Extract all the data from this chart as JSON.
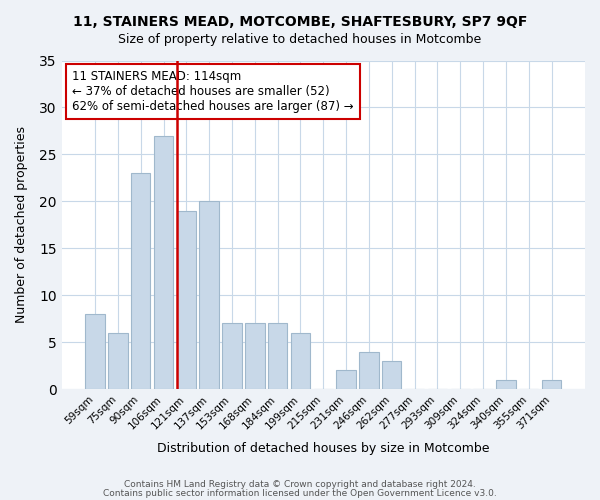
{
  "title": "11, STAINERS MEAD, MOTCOMBE, SHAFTESBURY, SP7 9QF",
  "subtitle": "Size of property relative to detached houses in Motcombe",
  "xlabel": "Distribution of detached houses by size in Motcombe",
  "ylabel": "Number of detached properties",
  "categories": [
    "59sqm",
    "75sqm",
    "90sqm",
    "106sqm",
    "121sqm",
    "137sqm",
    "153sqm",
    "168sqm",
    "184sqm",
    "199sqm",
    "215sqm",
    "231sqm",
    "246sqm",
    "262sqm",
    "277sqm",
    "293sqm",
    "309sqm",
    "324sqm",
    "340sqm",
    "355sqm",
    "371sqm"
  ],
  "values": [
    8,
    6,
    23,
    27,
    19,
    20,
    7,
    7,
    7,
    6,
    0,
    2,
    4,
    3,
    0,
    0,
    0,
    0,
    1,
    0,
    1
  ],
  "bar_color": "#c8d8e8",
  "bar_edge_color": "#a0b8cc",
  "vline_position": 3.575,
  "vline_color": "#cc0000",
  "annotation_line1": "11 STAINERS MEAD: 114sqm",
  "annotation_line2": "← 37% of detached houses are smaller (52)",
  "annotation_line3": "62% of semi-detached houses are larger (87) →",
  "annotation_box_edge_color": "#cc0000",
  "ylim": [
    0,
    35
  ],
  "yticks": [
    0,
    5,
    10,
    15,
    20,
    25,
    30,
    35
  ],
  "footer1": "Contains HM Land Registry data © Crown copyright and database right 2024.",
  "footer2": "Contains public sector information licensed under the Open Government Licence v3.0.",
  "bg_color": "#eef2f7",
  "plot_bg_color": "#ffffff",
  "grid_color": "#c8d8e8"
}
